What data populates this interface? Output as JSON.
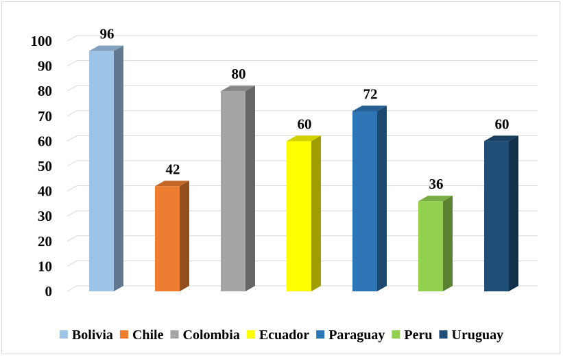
{
  "chart_data": {
    "type": "bar",
    "categories": [
      "Bolivia",
      "Chile",
      "Colombia",
      "Ecuador",
      "Paraguay",
      "Peru",
      "Uruguay"
    ],
    "values": [
      96,
      42,
      80,
      60,
      72,
      36,
      60
    ],
    "data_labels": [
      "96",
      "42",
      "80",
      "60",
      "72",
      "36",
      "60"
    ],
    "colors": [
      "#9dc3e6",
      "#ed7d31",
      "#a5a5a5",
      "#ffff00",
      "#2e75b6",
      "#92d050",
      "#1f4e79"
    ],
    "ylim": [
      0,
      100
    ],
    "yticks": [
      "0",
      "10",
      "20",
      "30",
      "40",
      "50",
      "60",
      "70",
      "80",
      "90",
      "100"
    ],
    "grid": true,
    "legend": "bottom",
    "style": "3d-column"
  }
}
